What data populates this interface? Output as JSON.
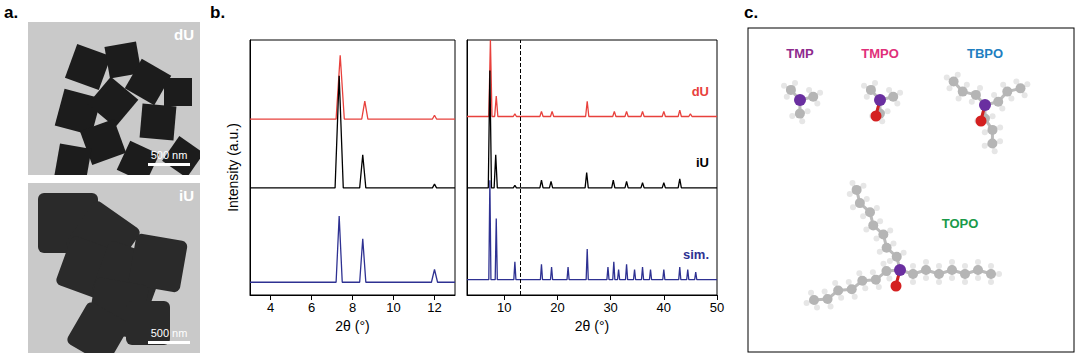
{
  "panel_labels": [
    "a.",
    "b.",
    "c."
  ],
  "panel_a": {
    "images": [
      {
        "label": "dU",
        "scale_bar": "500 nm"
      },
      {
        "label": "iU",
        "scale_bar": "500 nm"
      }
    ]
  },
  "chart_data": [
    {
      "type": "line",
      "x_label": "2θ (°)",
      "y_label": "Intensity (a.u.)",
      "xlim": [
        3,
        13
      ],
      "xticks": [
        4,
        6,
        8,
        10,
        12
      ],
      "ylim": [
        0,
        100
      ],
      "tick_labels": "x",
      "grid": false,
      "series": [
        {
          "name": "dU",
          "color": "#e8413c",
          "x": [
            3,
            7.2,
            7.4,
            7.6,
            8.45,
            8.6,
            8.75,
            11.9,
            12.0,
            12.1,
            13
          ],
          "values": [
            69,
            69,
            94,
            69,
            69,
            76,
            69,
            69,
            70.5,
            69,
            69
          ]
        },
        {
          "name": "iU",
          "color": "#000000",
          "x": [
            3,
            7.15,
            7.35,
            7.55,
            8.35,
            8.5,
            8.65,
            11.9,
            12.0,
            12.1,
            13
          ],
          "values": [
            42,
            42,
            86,
            42,
            42,
            55,
            42,
            42,
            43.5,
            42,
            42
          ]
        },
        {
          "name": "sim.",
          "color": "#2e3192",
          "x": [
            3,
            7.2,
            7.35,
            7.5,
            8.35,
            8.5,
            8.65,
            11.85,
            12.0,
            12.15,
            13
          ],
          "values": [
            5,
            5,
            31,
            5,
            5,
            22,
            5,
            5,
            10,
            5,
            5
          ]
        }
      ]
    },
    {
      "type": "line",
      "x_label": "2θ (°)",
      "xlim": [
        3,
        50
      ],
      "xticks": [
        10,
        20,
        30,
        40,
        50
      ],
      "ylim": [
        0,
        100
      ],
      "tick_labels": "x",
      "grid": false,
      "annotations": [
        {
          "x": 13,
          "line_style": "dashed"
        }
      ],
      "series": [
        {
          "name": "dU",
          "color": "#e8413c",
          "x": [
            3,
            7.1,
            7.4,
            7.7,
            8.2,
            8.5,
            8.8,
            11.7,
            12,
            12.3,
            16.7,
            17,
            17.3,
            18.7,
            19,
            19.3,
            25.3,
            25.6,
            25.9,
            30.4,
            30.7,
            31,
            32.7,
            33,
            33.3,
            35.7,
            36,
            36.3,
            39.7,
            40,
            40.3,
            42.7,
            43,
            43.3,
            44.7,
            45,
            45.3,
            50
          ],
          "values": [
            70,
            70,
            100,
            70,
            70,
            78,
            70,
            70,
            71,
            70,
            70,
            72,
            70,
            70,
            72,
            70,
            70,
            76,
            70,
            70,
            72,
            70,
            70,
            72,
            70,
            70,
            72,
            70,
            70,
            72,
            70,
            70,
            72.5,
            70,
            70,
            71,
            70,
            70
          ]
        },
        {
          "name": "iU",
          "color": "#000000",
          "x": [
            3,
            7.0,
            7.3,
            7.6,
            8.1,
            8.4,
            8.7,
            11.7,
            12,
            12.3,
            16.7,
            17,
            17.3,
            18.5,
            18.8,
            19.1,
            25.2,
            25.5,
            25.8,
            30.2,
            30.5,
            30.8,
            32.7,
            33,
            33.3,
            35.7,
            36,
            36.3,
            39.7,
            40,
            40.3,
            42.7,
            43,
            43.3,
            50
          ],
          "values": [
            42,
            42,
            88,
            42,
            42,
            55,
            42,
            42,
            43,
            42,
            42,
            45,
            42,
            42,
            44.5,
            42,
            42,
            48,
            42,
            42,
            45,
            42,
            42,
            44.5,
            42,
            42,
            44,
            42,
            42,
            44,
            42,
            42,
            45.5,
            42,
            42
          ]
        },
        {
          "name": "sim.",
          "color": "#2e3192",
          "x": [
            3,
            7.1,
            7.3,
            7.5,
            8.3,
            8.5,
            8.7,
            11.8,
            12,
            12.2,
            16.8,
            17,
            17.2,
            18.7,
            18.9,
            19.1,
            21.8,
            22,
            22.2,
            25.4,
            25.6,
            25.8,
            29.3,
            29.5,
            29.7,
            30.4,
            30.6,
            30.8,
            31.3,
            31.5,
            31.7,
            32.8,
            33,
            33.2,
            34.3,
            34.5,
            34.7,
            35.8,
            36,
            36.2,
            37.3,
            37.5,
            37.7,
            39.8,
            40,
            40.2,
            42.8,
            43,
            43.2,
            44.3,
            44.5,
            44.7,
            45.8,
            46,
            46.2,
            50
          ],
          "values": [
            6,
            6,
            45,
            6,
            6,
            30,
            6,
            6,
            13,
            6,
            6,
            12,
            6,
            6,
            11,
            6,
            6,
            11,
            6,
            6,
            18,
            6,
            6,
            11,
            6,
            6,
            13,
            6,
            6,
            10,
            6,
            6,
            12,
            6,
            6,
            10,
            6,
            6,
            11,
            6,
            6,
            10,
            6,
            6,
            10,
            6,
            6,
            11,
            6,
            6,
            10,
            6,
            6,
            9,
            6,
            6
          ]
        }
      ]
    }
  ],
  "panel_c": {
    "molecules": [
      {
        "label": "TMP",
        "color": "#8e2b8e"
      },
      {
        "label": "TMPO",
        "color": "#e0307a"
      },
      {
        "label": "TBPO",
        "color": "#1f7fc1"
      },
      {
        "label": "TOPO",
        "color": "#1a9a4a"
      }
    ]
  }
}
